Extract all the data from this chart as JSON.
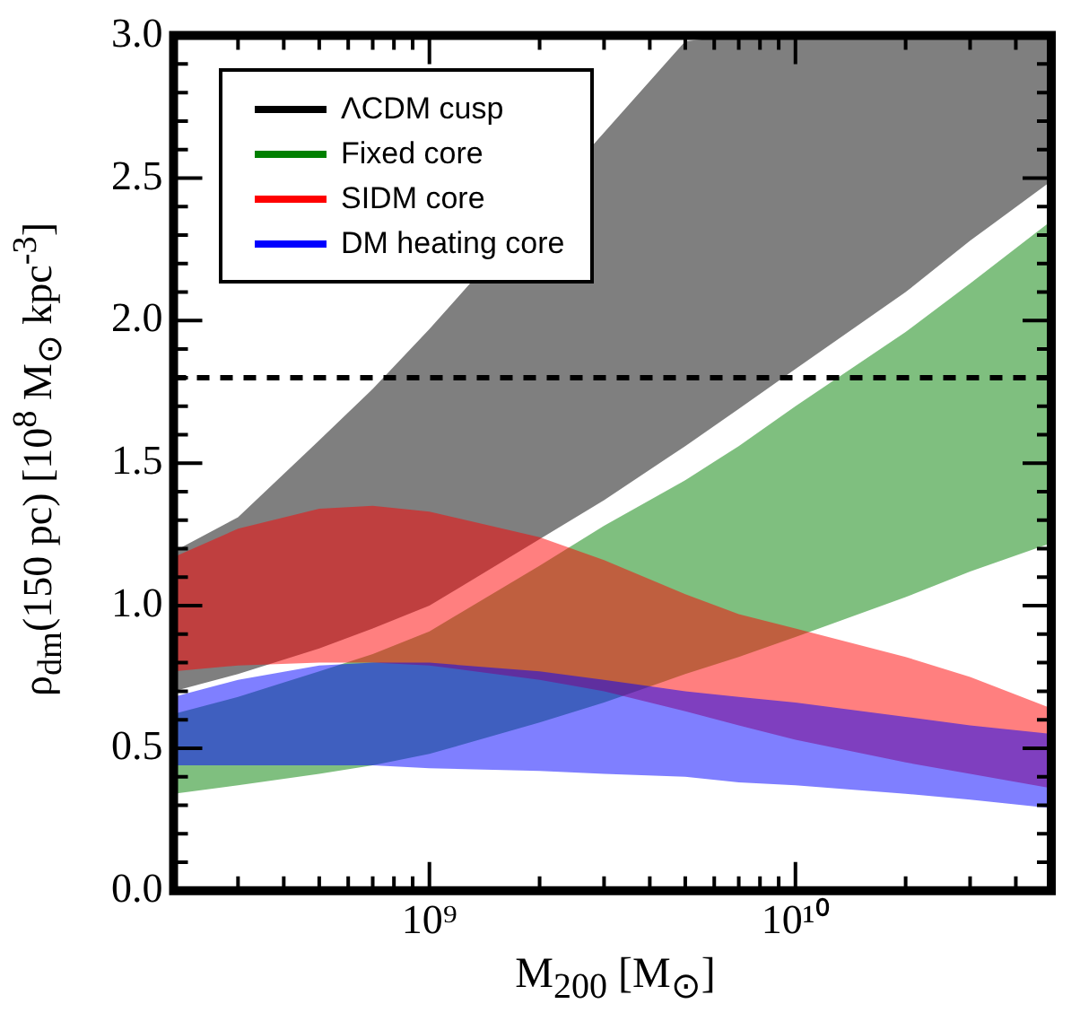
{
  "chart_data": {
    "type": "area",
    "xlabel": "M$_{200}$ [M$_{⊙}$]",
    "ylabel": "ρ$_{dm}$(150 pc) [10$^{8}$ M$_{⊙}$ kpc$^{-3}$]",
    "log": "x",
    "legend": "top left",
    "grid": false,
    "x": [
      200000000.0,
      300000000.0,
      500000000.0,
      700000000.0,
      1000000000.0,
      2000000000.0,
      3000000000.0,
      5000000000.0,
      7000000000.0,
      10000000000.0,
      20000000000.0,
      30000000000.0,
      50000000000.0
    ],
    "xlim": [
      200000000.0,
      50000000000.0
    ],
    "xticks": [
      {
        "value": 200000000.0,
        "label": null
      },
      {
        "value": 300000000.0,
        "label": null
      },
      {
        "value": 400000000.0,
        "label": null
      },
      {
        "value": 500000000.0,
        "label": null
      },
      {
        "value": 600000000.0,
        "label": null
      },
      {
        "value": 700000000.0,
        "label": null
      },
      {
        "value": 800000000.0,
        "label": null
      },
      {
        "value": 900000000.0,
        "label": null
      },
      {
        "value": 1000000000.0,
        "label": "10⁹"
      },
      {
        "value": 2000000000.0,
        "label": null
      },
      {
        "value": 3000000000.0,
        "label": null
      },
      {
        "value": 4000000000.0,
        "label": null
      },
      {
        "value": 5000000000.0,
        "label": null
      },
      {
        "value": 6000000000.0,
        "label": null
      },
      {
        "value": 7000000000.0,
        "label": null
      },
      {
        "value": 8000000000.0,
        "label": null
      },
      {
        "value": 9000000000.0,
        "label": null
      },
      {
        "value": 10000000000.0,
        "label": "10¹⁰"
      },
      {
        "value": 20000000000.0,
        "label": null
      },
      {
        "value": 30000000000.0,
        "label": null
      },
      {
        "value": 40000000000.0,
        "label": null
      },
      {
        "value": 50000000000.0,
        "label": null
      }
    ],
    "ylim": [
      0,
      3
    ],
    "yticks": [
      {
        "value": 0,
        "label": "0.0"
      },
      {
        "value": 0.1,
        "label": null
      },
      {
        "value": 0.2,
        "label": null
      },
      {
        "value": 0.3,
        "label": null
      },
      {
        "value": 0.4,
        "label": null
      },
      {
        "value": 0.5,
        "label": "0.5"
      },
      {
        "value": 0.6,
        "label": null
      },
      {
        "value": 0.7,
        "label": null
      },
      {
        "value": 0.8,
        "label": null
      },
      {
        "value": 0.9,
        "label": null
      },
      {
        "value": 1,
        "label": "1.0"
      },
      {
        "value": 1.1,
        "label": null
      },
      {
        "value": 1.2,
        "label": null
      },
      {
        "value": 1.3,
        "label": null
      },
      {
        "value": 1.4,
        "label": null
      },
      {
        "value": 1.5,
        "label": "1.5"
      },
      {
        "value": 1.6,
        "label": null
      },
      {
        "value": 1.7,
        "label": null
      },
      {
        "value": 1.8,
        "label": null
      },
      {
        "value": 1.9,
        "label": null
      },
      {
        "value": 2,
        "label": "2.0"
      },
      {
        "value": 2.1,
        "label": null
      },
      {
        "value": 2.2,
        "label": null
      },
      {
        "value": 2.3,
        "label": null
      },
      {
        "value": 2.4,
        "label": null
      },
      {
        "value": 2.5,
        "label": "2.5"
      },
      {
        "value": 2.6,
        "label": null
      },
      {
        "value": 2.7,
        "label": null
      },
      {
        "value": 2.8,
        "label": null
      },
      {
        "value": 2.9,
        "label": null
      },
      {
        "value": 3,
        "label": "3.0"
      }
    ],
    "ref_lines": [
      {
        "axis": "y",
        "value": 1.8,
        "color": "#000000",
        "line_style": "dashed"
      }
    ],
    "series": [
      {
        "name": "ΛCDM cusp",
        "color": "#000000",
        "x": [
          200000000.0,
          300000000.0,
          500000000.0,
          700000000.0,
          1000000000.0,
          3000000000.0,
          5000000000.0,
          7000000000.0,
          10000000000.0,
          20000000000.0,
          30000000000.0,
          50000000000.0
        ],
        "values": [
          null,
          null,
          null,
          null,
          null,
          null,
          null,
          null,
          null,
          null,
          null,
          null
        ],
        "lower": [
          0.7,
          0.76,
          0.85,
          0.92,
          1.0,
          1.37,
          1.56,
          1.69,
          1.83,
          2.1,
          2.28,
          2.49
        ],
        "upper": [
          1.19,
          1.31,
          1.58,
          1.76,
          1.97,
          2.66,
          2.98,
          3.0,
          3.0,
          3.0,
          3.0,
          3.0
        ]
      },
      {
        "name": "Fixed core",
        "color": "#008000",
        "values": [
          null,
          null,
          null,
          null,
          null,
          null,
          null,
          null,
          null,
          null,
          null,
          null,
          null
        ],
        "lower": [
          0.34,
          0.37,
          0.41,
          0.44,
          0.48,
          0.59,
          0.66,
          0.76,
          0.82,
          0.89,
          1.03,
          1.12,
          1.22
        ],
        "upper": [
          0.62,
          0.68,
          0.77,
          0.83,
          0.91,
          1.14,
          1.28,
          1.44,
          1.56,
          1.7,
          1.96,
          2.13,
          2.35
        ]
      },
      {
        "name": "SIDM core",
        "color": "#ff0000",
        "values": [
          null,
          null,
          null,
          null,
          null,
          null,
          null,
          null,
          null,
          null,
          null,
          null,
          null
        ],
        "lower": [
          0.77,
          0.79,
          0.8,
          0.8,
          0.79,
          0.74,
          0.7,
          0.63,
          0.58,
          0.53,
          0.45,
          0.41,
          0.36
        ],
        "upper": [
          1.17,
          1.27,
          1.34,
          1.35,
          1.33,
          1.24,
          1.16,
          1.04,
          0.97,
          0.92,
          0.82,
          0.75,
          0.64
        ]
      },
      {
        "name": "DM heating core",
        "color": "#0000ff",
        "values": [
          null,
          null,
          null,
          null,
          null,
          null,
          null,
          null,
          null,
          null,
          null,
          null,
          null
        ],
        "lower": [
          0.44,
          0.44,
          0.44,
          0.44,
          0.43,
          0.42,
          0.41,
          0.4,
          0.38,
          0.37,
          0.34,
          0.32,
          0.29
        ],
        "upper": [
          0.68,
          0.74,
          0.79,
          0.8,
          0.8,
          0.77,
          0.74,
          0.7,
          0.68,
          0.66,
          0.61,
          0.58,
          0.55
        ]
      }
    ]
  }
}
